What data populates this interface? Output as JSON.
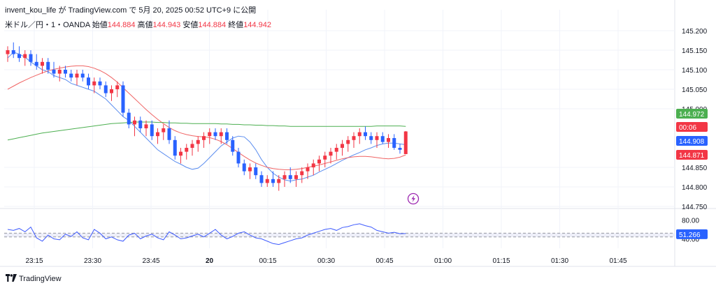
{
  "header": {
    "caption": "invent_kou_life が TradingView.com で 5月 20, 2025 00:52 UTC+9 に公開",
    "symbol": "米ドル／円・1・OANDA",
    "open_label": "始値",
    "open": "144.884",
    "high_label": "高値",
    "high": "144.943",
    "low_label": "安値",
    "low": "144.884",
    "close_label": "終値",
    "close": "144.942"
  },
  "footer": {
    "brand": "TradingView"
  },
  "colors": {
    "up": "#f23645",
    "down": "#2962ff",
    "ma_fast": "#5b8def",
    "ma_mid": "#f06464",
    "ma_slow": "#4caf50",
    "rsi": "#3d5afe",
    "grid": "#f0f3fa"
  },
  "icons": {
    "replay": "lightning-icon"
  },
  "chart_data": [
    {
      "type": "candlestick",
      "title": "",
      "x_axis": {
        "tick_labels": [
          "23:15",
          "23:30",
          "23:45",
          "20",
          "00:15",
          "00:30",
          "00:45",
          "01:00",
          "01:15",
          "01:30",
          "01:45"
        ]
      },
      "y_axis": {
        "tick_labels": [
          "145.200",
          "145.150",
          "145.100",
          "145.050",
          "145.000",
          "144.850",
          "144.800",
          "144.750"
        ],
        "range": [
          144.75,
          145.2
        ]
      },
      "badges": [
        {
          "label": "144.972",
          "color": "#4caf50"
        },
        {
          "label": "00:06",
          "color": "#f23645"
        },
        {
          "label": "144.908",
          "color": "#2962ff"
        },
        {
          "label": "144.871",
          "color": "#f23645"
        }
      ],
      "moving_averages": [
        {
          "role": "fast",
          "values": [
            145.13,
            145.145,
            145.14,
            145.132,
            145.12,
            145.11,
            145.1,
            145.095,
            145.085,
            145.08,
            145.075,
            145.065,
            145.06,
            145.055,
            145.05,
            145.045,
            145.035,
            145.025,
            145.01,
            144.995,
            144.98,
            144.97,
            144.955,
            144.94,
            144.925,
            144.91,
            144.895,
            144.885,
            144.875,
            144.865,
            144.858,
            144.85,
            144.845,
            144.848,
            144.86,
            144.875,
            144.89,
            144.905,
            144.915,
            144.925,
            144.93,
            144.928,
            144.915,
            144.895,
            144.87,
            144.85,
            144.835,
            144.825,
            144.818,
            144.815,
            144.818,
            144.82,
            144.825,
            144.83,
            144.838,
            144.845,
            144.852,
            144.86,
            144.868,
            144.875,
            144.882,
            144.888,
            144.895,
            144.9,
            144.906,
            144.91,
            144.912,
            144.912,
            144.91,
            144.908
          ]
        },
        {
          "role": "mid",
          "values": [
            145.05,
            145.058,
            145.066,
            145.073,
            145.08,
            145.086,
            145.092,
            145.097,
            145.101,
            145.104,
            145.107,
            145.109,
            145.11,
            145.11,
            145.108,
            145.104,
            145.098,
            145.09,
            145.08,
            145.068,
            145.054,
            145.04,
            145.026,
            145.012,
            144.998,
            144.985,
            144.973,
            144.962,
            144.952,
            144.944,
            144.938,
            144.934,
            144.931,
            144.929,
            144.928,
            144.926,
            144.922,
            144.916,
            144.908,
            144.898,
            144.888,
            144.878,
            144.869,
            144.861,
            144.855,
            144.85,
            144.847,
            144.845,
            144.844,
            144.844,
            144.845,
            144.847,
            144.85,
            144.853,
            144.856,
            144.86,
            144.864,
            144.868,
            144.872,
            144.875,
            144.877,
            144.878,
            144.878,
            144.877,
            144.875,
            144.873,
            144.872,
            144.873,
            144.876,
            144.882
          ]
        },
        {
          "role": "slow",
          "values": [
            144.92,
            144.923,
            144.926,
            144.929,
            144.932,
            144.935,
            144.938,
            144.94,
            144.942,
            144.944,
            144.946,
            144.948,
            144.95,
            144.952,
            144.954,
            144.956,
            144.958,
            144.96,
            144.962,
            144.963,
            144.964,
            144.965,
            144.966,
            144.966,
            144.966,
            144.966,
            144.965,
            144.965,
            144.964,
            144.964,
            144.963,
            144.963,
            144.962,
            144.962,
            144.962,
            144.962,
            144.962,
            144.961,
            144.961,
            144.96,
            144.96,
            144.959,
            144.959,
            144.958,
            144.958,
            144.957,
            144.957,
            144.956,
            144.956,
            144.955,
            144.955,
            144.955,
            144.955,
            144.955,
            144.955,
            144.955,
            144.955,
            144.955,
            144.955,
            144.955,
            144.955,
            144.955,
            144.955,
            144.955,
            144.956,
            144.956,
            144.956,
            144.956,
            144.956,
            144.955
          ]
        }
      ],
      "candles": [
        [
          145.14,
          145.16,
          145.12,
          145.15
        ],
        [
          145.15,
          145.17,
          145.13,
          145.14
        ],
        [
          145.14,
          145.16,
          145.12,
          145.13
        ],
        [
          145.13,
          145.15,
          145.11,
          145.14
        ],
        [
          145.14,
          145.15,
          145.11,
          145.12
        ],
        [
          145.12,
          145.14,
          145.1,
          145.11
        ],
        [
          145.11,
          145.13,
          145.09,
          145.12
        ],
        [
          145.12,
          145.13,
          145.09,
          145.1
        ],
        [
          145.1,
          145.12,
          145.08,
          145.09
        ],
        [
          145.09,
          145.11,
          145.07,
          145.1
        ],
        [
          145.1,
          145.11,
          145.08,
          145.09
        ],
        [
          145.09,
          145.1,
          145.07,
          145.08
        ],
        [
          145.08,
          145.1,
          145.06,
          145.09
        ],
        [
          145.09,
          145.1,
          145.07,
          145.08
        ],
        [
          145.08,
          145.09,
          145.05,
          145.06
        ],
        [
          145.06,
          145.08,
          145.04,
          145.07
        ],
        [
          145.07,
          145.08,
          145.05,
          145.06
        ],
        [
          145.06,
          145.07,
          145.03,
          145.04
        ],
        [
          145.04,
          145.06,
          145.02,
          145.05
        ],
        [
          145.05,
          145.07,
          145.03,
          145.06
        ],
        [
          145.06,
          145.07,
          144.98,
          144.99
        ],
        [
          144.99,
          145.0,
          144.95,
          144.96
        ],
        [
          144.96,
          144.98,
          144.93,
          144.97
        ],
        [
          144.97,
          144.98,
          144.94,
          144.95
        ],
        [
          144.95,
          144.97,
          144.93,
          144.96
        ],
        [
          144.96,
          144.97,
          144.92,
          144.93
        ],
        [
          144.93,
          144.95,
          144.91,
          144.94
        ],
        [
          144.94,
          144.96,
          144.92,
          144.95
        ],
        [
          144.95,
          144.97,
          144.91,
          144.92
        ],
        [
          144.92,
          144.93,
          144.87,
          144.88
        ],
        [
          144.88,
          144.9,
          144.86,
          144.89
        ],
        [
          144.89,
          144.91,
          144.87,
          144.9
        ],
        [
          144.9,
          144.92,
          144.88,
          144.91
        ],
        [
          144.91,
          144.93,
          144.89,
          144.92
        ],
        [
          144.92,
          144.94,
          144.9,
          144.93
        ],
        [
          144.93,
          144.95,
          144.91,
          144.94
        ],
        [
          144.94,
          144.95,
          144.92,
          144.93
        ],
        [
          144.93,
          144.95,
          144.91,
          144.94
        ],
        [
          144.94,
          144.95,
          144.91,
          144.92
        ],
        [
          144.92,
          144.93,
          144.88,
          144.89
        ],
        [
          144.89,
          144.9,
          144.85,
          144.86
        ],
        [
          144.86,
          144.87,
          144.83,
          144.84
        ],
        [
          144.84,
          144.86,
          144.82,
          144.85
        ],
        [
          144.85,
          144.86,
          144.82,
          144.83
        ],
        [
          144.83,
          144.84,
          144.8,
          144.81
        ],
        [
          144.81,
          144.83,
          144.8,
          144.82
        ],
        [
          144.82,
          144.84,
          144.8,
          144.81
        ],
        [
          144.81,
          144.83,
          144.79,
          144.82
        ],
        [
          144.82,
          144.84,
          144.8,
          144.83
        ],
        [
          144.83,
          144.85,
          144.81,
          144.82
        ],
        [
          144.82,
          144.84,
          144.8,
          144.83
        ],
        [
          144.83,
          144.85,
          144.81,
          144.84
        ],
        [
          144.84,
          144.86,
          144.82,
          144.85
        ],
        [
          144.85,
          144.87,
          144.83,
          144.86
        ],
        [
          144.86,
          144.88,
          144.84,
          144.87
        ],
        [
          144.87,
          144.89,
          144.85,
          144.88
        ],
        [
          144.88,
          144.9,
          144.86,
          144.89
        ],
        [
          144.89,
          144.91,
          144.87,
          144.9
        ],
        [
          144.9,
          144.92,
          144.88,
          144.91
        ],
        [
          144.91,
          144.93,
          144.89,
          144.92
        ],
        [
          144.92,
          144.94,
          144.9,
          144.93
        ],
        [
          144.93,
          144.95,
          144.91,
          144.94
        ],
        [
          144.94,
          144.955,
          144.92,
          144.93
        ],
        [
          144.93,
          144.94,
          144.91,
          144.92
        ],
        [
          144.92,
          144.94,
          144.9,
          144.93
        ],
        [
          144.93,
          144.94,
          144.91,
          144.915
        ],
        [
          144.915,
          144.935,
          144.9,
          144.925
        ],
        [
          144.925,
          144.935,
          144.895,
          144.9
        ],
        [
          144.9,
          144.91,
          144.885,
          144.895
        ],
        [
          144.884,
          144.943,
          144.884,
          144.942
        ]
      ]
    },
    {
      "type": "line",
      "title": "",
      "y_axis": {
        "tick_labels": [
          "80.00",
          "40.00"
        ],
        "range": [
          20,
          100
        ]
      },
      "bands": [
        44,
        52
      ],
      "badge": {
        "label": "51.266",
        "color": "#2962ff"
      },
      "series": [
        {
          "values": [
            60,
            58,
            62,
            55,
            65,
            42,
            35,
            48,
            40,
            38,
            50,
            45,
            55,
            42,
            38,
            60,
            52,
            40,
            44,
            38,
            35,
            48,
            52,
            40,
            46,
            50,
            42,
            38,
            55,
            48,
            40,
            42,
            46,
            50,
            44,
            52,
            60,
            48,
            40,
            45,
            52,
            55,
            48,
            42,
            40,
            35,
            30,
            28,
            32,
            36,
            40,
            42,
            48,
            52,
            56,
            60,
            62,
            58,
            64,
            66,
            70,
            72,
            68,
            65,
            58,
            55,
            52,
            54,
            51,
            51.266
          ]
        }
      ]
    }
  ]
}
